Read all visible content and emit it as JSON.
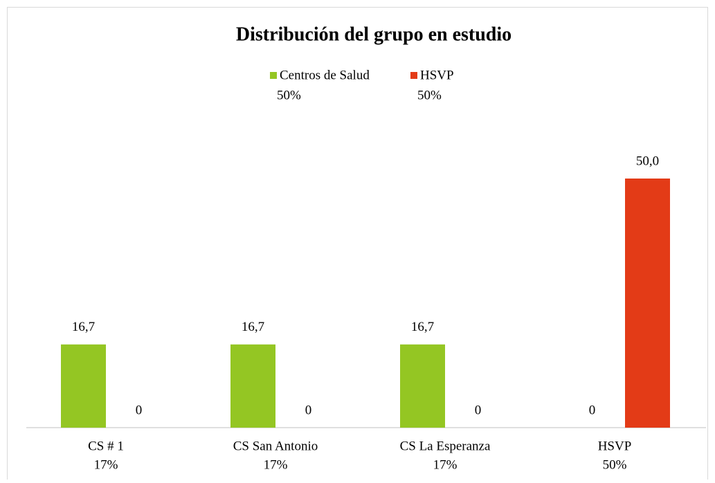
{
  "chart_data": {
    "type": "bar",
    "title": "Distribución del grupo en estudio",
    "categories": [
      [
        "CS # 1",
        "17%"
      ],
      [
        "CS San Antonio",
        "17%"
      ],
      [
        "CS La Esperanza",
        "17%"
      ],
      [
        "HSVP",
        "50%"
      ]
    ],
    "series": [
      {
        "name": "Centros de Salud",
        "share": "50%",
        "color": "#94c623",
        "values": [
          16.7,
          16.7,
          16.7,
          0
        ],
        "value_labels": [
          "16,7",
          "16,7",
          "16,7",
          "0"
        ]
      },
      {
        "name": "HSVP",
        "share": "50%",
        "color": "#e33b17",
        "values": [
          0,
          0,
          0,
          50.0
        ],
        "value_labels": [
          "0",
          "0",
          "0",
          "50,0"
        ]
      }
    ],
    "ylim": [
      0,
      60
    ]
  }
}
